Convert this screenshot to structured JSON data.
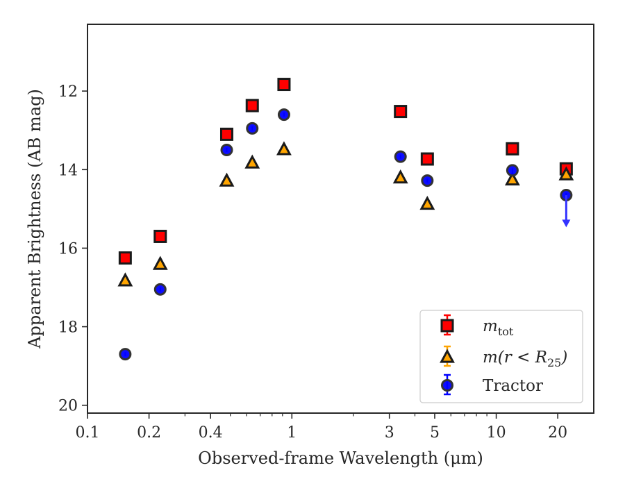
{
  "chart_data": {
    "type": "scatter",
    "xlabel": "Observed-frame Wavelength (μm)",
    "ylabel": "Apparent Brightness (AB mag)",
    "x_scale": "log",
    "y_inverted": true,
    "xlim": [
      0.1,
      30
    ],
    "ylim": [
      20.2,
      10.3
    ],
    "x_ticks": [
      0.1,
      0.2,
      0.4,
      1,
      3,
      5,
      10,
      20
    ],
    "x_tick_labels": [
      "0.1",
      "0.2",
      "0.4",
      "1",
      "3",
      "5",
      "10",
      "20"
    ],
    "y_ticks": [
      12,
      14,
      16,
      18,
      20
    ],
    "y_tick_labels": [
      "12",
      "14",
      "16",
      "18",
      "20"
    ],
    "grid": false,
    "legend_position": "lower-right",
    "series": [
      {
        "name": "m_tot",
        "legend_label": "m",
        "legend_subscript": "tot",
        "marker": "square",
        "color": "#ff0000",
        "edge_color": "#1a1a1a",
        "x": [
          0.153,
          0.227,
          0.48,
          0.64,
          0.915,
          3.4,
          4.6,
          12.0,
          22.0
        ],
        "y": [
          16.25,
          15.7,
          13.1,
          12.37,
          11.83,
          12.52,
          13.73,
          13.47,
          13.98
        ]
      },
      {
        "name": "m(r < R25)",
        "legend_label": "m(r < R",
        "legend_subscript": "25",
        "legend_suffix": ")",
        "marker": "triangle",
        "color": "#ffa500",
        "edge_color": "#1a1a1a",
        "x": [
          0.153,
          0.227,
          0.48,
          0.64,
          0.915,
          3.4,
          4.6,
          12.0,
          22.0
        ],
        "y": [
          16.82,
          16.4,
          14.28,
          13.82,
          13.48,
          14.2,
          14.87,
          14.25,
          14.12
        ]
      },
      {
        "name": "Tractor",
        "legend_label": "Tractor",
        "marker": "circle",
        "color": "#0000ff",
        "edge_color": "#333333",
        "x": [
          0.153,
          0.227,
          0.48,
          0.64,
          0.915,
          3.4,
          4.6,
          12.0,
          22.0
        ],
        "y": [
          18.7,
          17.05,
          13.5,
          12.95,
          12.6,
          13.67,
          14.28,
          14.02,
          14.65
        ],
        "upper_limit_index": 8,
        "upper_limit_to": 15.45
      }
    ]
  },
  "colors": {
    "axis": "#262626",
    "arrow": "#3333ff"
  }
}
